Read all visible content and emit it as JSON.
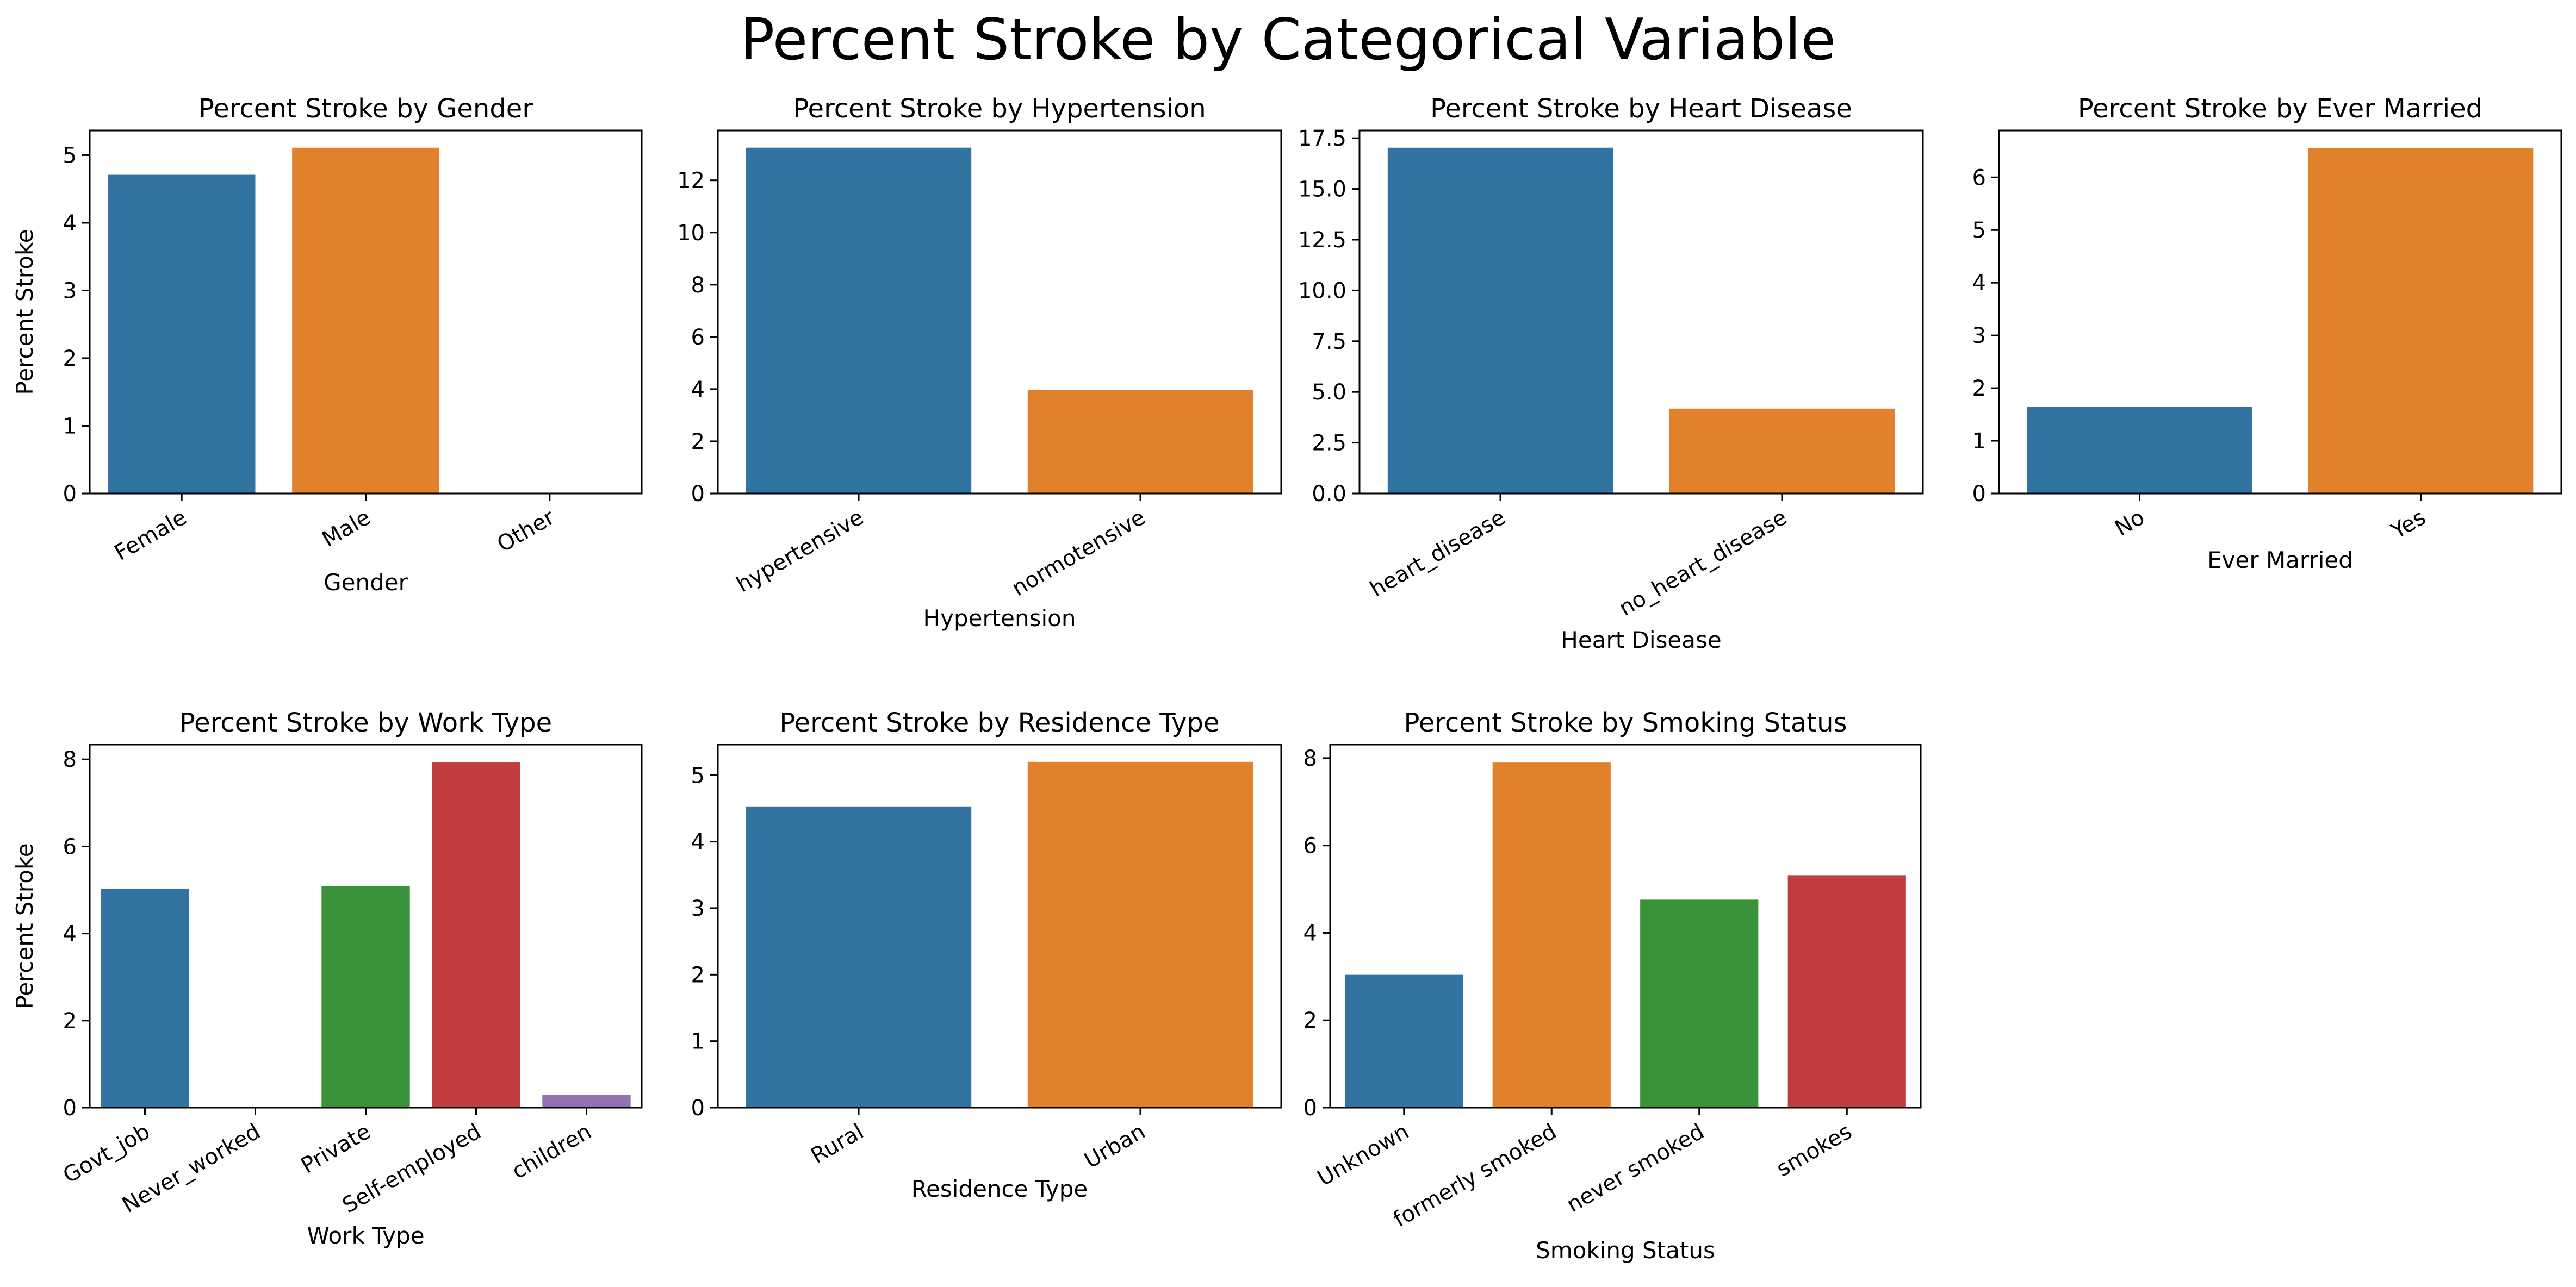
{
  "figure": {
    "title": "Percent Stroke by Categorical Variable"
  },
  "colors": [
    "#3274a1",
    "#e1812c",
    "#3a923a",
    "#c03d3e",
    "#9372b2"
  ],
  "chart_data": [
    {
      "type": "bar",
      "title": "Percent Stroke by Gender",
      "xlabel": "Gender",
      "ylabel": "Percent Stroke",
      "categories": [
        "Female",
        "Male",
        "Other"
      ],
      "values": [
        4.71,
        5.11,
        0
      ],
      "ylim": [
        0,
        5.365
      ],
      "yticks": [
        0,
        1,
        2,
        3,
        4,
        5
      ],
      "tick_decimals": 0,
      "grid": false,
      "legend": "none"
    },
    {
      "type": "bar",
      "title": "Percent Stroke by Hypertension",
      "xlabel": "Hypertension",
      "ylabel": "",
      "categories": [
        "hypertensive",
        "normotensive"
      ],
      "values": [
        13.25,
        3.97
      ],
      "ylim": [
        0,
        13.91
      ],
      "yticks": [
        0,
        2,
        4,
        6,
        8,
        10,
        12
      ],
      "tick_decimals": 0,
      "grid": false,
      "legend": "none"
    },
    {
      "type": "bar",
      "title": "Percent Stroke by Heart Disease",
      "xlabel": "Heart Disease",
      "ylabel": "",
      "categories": [
        "heart_disease",
        "no_heart_disease"
      ],
      "values": [
        17.03,
        4.18
      ],
      "ylim": [
        0,
        17.88
      ],
      "yticks": [
        0,
        2.5,
        5,
        7.5,
        10,
        12.5,
        15,
        17.5
      ],
      "tick_decimals": 1,
      "grid": false,
      "legend": "none"
    },
    {
      "type": "bar",
      "title": "Percent Stroke by Ever Married",
      "xlabel": "Ever Married",
      "ylabel": "",
      "categories": [
        "No",
        "Yes"
      ],
      "values": [
        1.65,
        6.56
      ],
      "ylim": [
        0,
        6.89
      ],
      "yticks": [
        0,
        1,
        2,
        3,
        4,
        5,
        6
      ],
      "tick_decimals": 0,
      "grid": false,
      "legend": "none"
    },
    {
      "type": "bar",
      "title": "Percent Stroke by Work Type",
      "xlabel": "Work Type",
      "ylabel": "Percent Stroke",
      "categories": [
        "Govt_job",
        "Never_worked",
        "Private",
        "Self-employed",
        "children"
      ],
      "values": [
        5.02,
        0,
        5.09,
        7.94,
        0.29
      ],
      "ylim": [
        0,
        8.34
      ],
      "yticks": [
        0,
        2,
        4,
        6,
        8
      ],
      "tick_decimals": 0,
      "grid": false,
      "legend": "none"
    },
    {
      "type": "bar",
      "title": "Percent Stroke by Residence Type",
      "xlabel": "Residence Type",
      "ylabel": "",
      "categories": [
        "Rural",
        "Urban"
      ],
      "values": [
        4.53,
        5.2
      ],
      "ylim": [
        0,
        5.46
      ],
      "yticks": [
        0,
        1,
        2,
        3,
        4,
        5
      ],
      "tick_decimals": 0,
      "grid": false,
      "legend": "none"
    },
    {
      "type": "bar",
      "title": "Percent Stroke by Smoking Status",
      "xlabel": "Smoking Status",
      "ylabel": "",
      "categories": [
        "Unknown",
        "formerly smoked",
        "never smoked",
        "smokes"
      ],
      "values": [
        3.04,
        7.91,
        4.76,
        5.32
      ],
      "ylim": [
        0,
        8.31
      ],
      "yticks": [
        0,
        2,
        4,
        6,
        8
      ],
      "tick_decimals": 0,
      "grid": false,
      "legend": "none"
    }
  ]
}
